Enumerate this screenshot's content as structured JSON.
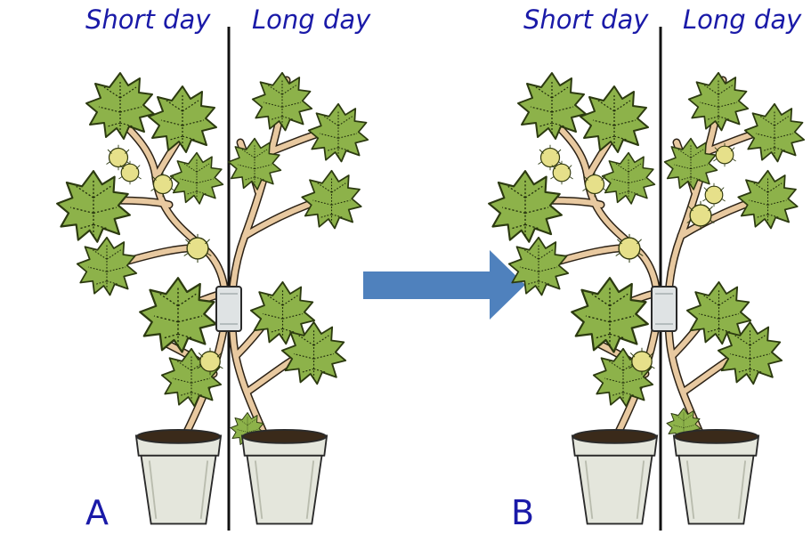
{
  "panels": [
    {
      "letter": "A",
      "left_label": "Short day",
      "right_label": "Long day",
      "flowers_on": [
        "short-day side"
      ]
    },
    {
      "letter": "B",
      "left_label": "Short day",
      "right_label": "Long day",
      "flowers_on": [
        "short-day side",
        "long-day side"
      ]
    }
  ],
  "colors": {
    "label": "#1a1aa8",
    "arrow": "#4f81bd",
    "leaf": "#8db24a",
    "leaf_edge": "#2c3a10",
    "stem": "#e8c9a0",
    "flower": "#e6e08a",
    "pot": "#e4e6dc",
    "soil": "#3a2a1a",
    "divider": "#111111"
  },
  "icons": {
    "arrow": "right-arrow-icon",
    "clip": "graft-clip-icon"
  }
}
